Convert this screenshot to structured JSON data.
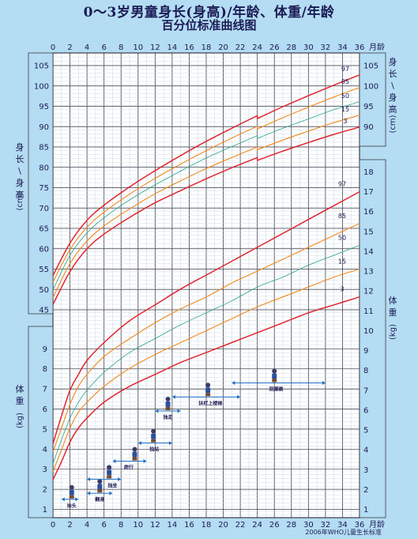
{
  "title": {
    "line1": "0～3岁男童身长(身高)/年龄、体重/年龄",
    "line2": "百分位标准曲线图"
  },
  "footer": "2006年WHO儿童生长标准",
  "colors": {
    "background": "#b4dcf2",
    "grid_minor": "#c6d6e2",
    "grid_major": "#3c3c4a",
    "p97_p3": "#e0262f",
    "p85_p15": "#f0891c",
    "p50": "#2aa28c",
    "milestone_arrow": "#1f6fc1",
    "text": "#1b1b55"
  },
  "chart_data": {
    "type": "line",
    "x_axis": {
      "label": "月龄",
      "range": [
        0,
        36
      ],
      "ticks": [
        0,
        2,
        4,
        6,
        8,
        10,
        12,
        14,
        16,
        18,
        20,
        22,
        24,
        26,
        28,
        30,
        32,
        34,
        36
      ],
      "tick_labels": [
        "0",
        "2",
        "4",
        "6",
        "8",
        "10",
        "12",
        "14",
        "16",
        "18",
        "20",
        "22",
        "24",
        "26",
        "28",
        "30",
        "32",
        "34",
        "36"
      ]
    },
    "length_axis": {
      "label_left": "身长/身高",
      "unit": "(cm)",
      "label_right": "身长/身高",
      "range": [
        43,
        107
      ],
      "ticks": [
        45,
        50,
        55,
        60,
        65,
        70,
        75,
        80,
        85,
        90,
        95,
        100,
        105
      ]
    },
    "weight_axis": {
      "label_left": "体重",
      "unit": "(kg)",
      "label_right": "体重",
      "range_left": [
        0.5,
        10.5
      ],
      "ticks_left": [
        1,
        2,
        3,
        4,
        5,
        6,
        7,
        8,
        9
      ],
      "range_right": [
        0.5,
        18.5
      ],
      "ticks_right": [
        1,
        2,
        3,
        4,
        5,
        6,
        7,
        8,
        9,
        10,
        11,
        12,
        13,
        14,
        15,
        16,
        17,
        18
      ]
    },
    "series": [
      {
        "name": "97",
        "kind": "length",
        "color": "#e0262f",
        "x": [
          0,
          2,
          4,
          6,
          9,
          12,
          15,
          18,
          21,
          24,
          24,
          27,
          30,
          33,
          36
        ],
        "y": [
          53.4,
          61.4,
          67.0,
          70.7,
          75.2,
          79.2,
          82.9,
          86.4,
          89.6,
          92.7,
          92.0,
          94.9,
          97.6,
          100.2,
          102.7
        ]
      },
      {
        "name": "85",
        "kind": "length",
        "color": "#f0891c",
        "x": [
          0,
          2,
          4,
          6,
          9,
          12,
          15,
          18,
          21,
          24,
          24,
          27,
          30,
          33,
          36
        ],
        "y": [
          51.8,
          59.8,
          65.3,
          69.0,
          73.4,
          77.3,
          80.8,
          84.1,
          87.2,
          90.1,
          89.4,
          92.2,
          94.8,
          97.3,
          99.6
        ]
      },
      {
        "name": "50",
        "kind": "length",
        "color": "#2aa28c",
        "x": [
          0,
          2,
          4,
          6,
          9,
          12,
          15,
          18,
          21,
          24,
          24,
          27,
          30,
          33,
          36
        ],
        "y": [
          49.9,
          58.4,
          63.9,
          67.6,
          72.0,
          75.7,
          79.1,
          82.3,
          85.1,
          87.8,
          87.1,
          89.6,
          91.9,
          94.2,
          96.1
        ]
      },
      {
        "name": "15",
        "kind": "length",
        "color": "#f0891c",
        "x": [
          0,
          2,
          4,
          6,
          9,
          12,
          15,
          18,
          21,
          24,
          24,
          27,
          30,
          33,
          36
        ],
        "y": [
          48.0,
          56.4,
          61.9,
          65.6,
          69.8,
          73.5,
          76.7,
          79.7,
          82.4,
          85.0,
          84.3,
          86.7,
          88.9,
          91.0,
          92.8
        ]
      },
      {
        "name": "3",
        "kind": "length",
        "color": "#e0262f",
        "x": [
          0,
          2,
          4,
          6,
          9,
          12,
          15,
          18,
          21,
          24,
          24,
          27,
          30,
          33,
          36
        ],
        "y": [
          46.3,
          54.4,
          60.0,
          63.6,
          67.7,
          71.3,
          74.3,
          77.2,
          79.9,
          82.4,
          81.7,
          84.0,
          86.1,
          88.1,
          89.9
        ]
      },
      {
        "name": "97",
        "kind": "weight",
        "color": "#e0262f",
        "x": [
          0,
          1,
          2,
          3,
          4,
          6,
          9,
          12,
          15,
          18,
          21,
          24,
          27,
          30,
          33,
          36
        ],
        "y": [
          4.3,
          5.7,
          7.0,
          7.8,
          8.5,
          9.4,
          10.5,
          11.3,
          12.1,
          12.8,
          13.5,
          14.2,
          14.9,
          15.6,
          16.3,
          17.0
        ]
      },
      {
        "name": "85",
        "kind": "weight",
        "color": "#f0891c",
        "x": [
          0,
          1,
          2,
          3,
          4,
          6,
          9,
          12,
          15,
          18,
          21,
          24,
          27,
          30,
          33,
          36
        ],
        "y": [
          3.9,
          5.1,
          6.3,
          7.2,
          7.8,
          8.7,
          9.6,
          10.4,
          11.1,
          11.7,
          12.4,
          13.0,
          13.6,
          14.2,
          14.8,
          15.4
        ]
      },
      {
        "name": "50",
        "kind": "weight",
        "color": "#2aa28c",
        "x": [
          0,
          1,
          2,
          3,
          4,
          6,
          9,
          12,
          15,
          18,
          21,
          24,
          27,
          30,
          33,
          36
        ],
        "y": [
          3.3,
          4.5,
          5.6,
          6.4,
          7.0,
          7.9,
          8.9,
          9.6,
          10.3,
          10.9,
          11.5,
          12.2,
          12.7,
          13.3,
          13.8,
          14.3
        ]
      },
      {
        "name": "15",
        "kind": "weight",
        "color": "#f0891c",
        "x": [
          0,
          1,
          2,
          3,
          4,
          6,
          9,
          12,
          15,
          18,
          21,
          24,
          27,
          30,
          33,
          36
        ],
        "y": [
          2.9,
          4.0,
          5.1,
          5.9,
          6.4,
          7.2,
          8.1,
          8.8,
          9.4,
          10.0,
          10.6,
          11.2,
          11.7,
          12.2,
          12.7,
          13.1
        ]
      },
      {
        "name": "3",
        "kind": "weight",
        "color": "#e0262f",
        "x": [
          0,
          1,
          2,
          3,
          4,
          6,
          9,
          12,
          15,
          18,
          21,
          24,
          27,
          30,
          33,
          36
        ],
        "y": [
          2.5,
          3.4,
          4.4,
          5.1,
          5.6,
          6.4,
          7.2,
          7.8,
          8.4,
          8.9,
          9.4,
          9.9,
          10.4,
          10.9,
          11.3,
          11.7
        ]
      }
    ],
    "milestones": [
      {
        "label": "抬头",
        "start_month": 1,
        "end_month": 3,
        "weight": 1.5,
        "figure_month": 2.2,
        "label_month": 2.2
      },
      {
        "label": "翻身",
        "start_month": 4,
        "end_month": 7,
        "weight": 1.8,
        "figure_month": 5.5,
        "label_month": 5.5
      },
      {
        "label": "独坐",
        "start_month": 4,
        "end_month": 8,
        "weight": 2.5,
        "figure_month": 6.6,
        "label_month": 7.0
      },
      {
        "label": "爬行",
        "start_month": 7,
        "end_month": 11,
        "weight": 3.4,
        "figure_month": 9.6,
        "label_month": 8.9
      },
      {
        "label": "独站",
        "start_month": 10,
        "end_month": 14,
        "weight": 4.3,
        "figure_month": 11.8,
        "label_month": 11.9
      },
      {
        "label": "独走",
        "start_month": 12,
        "end_month": 15,
        "weight": 5.9,
        "figure_month": 13.5,
        "label_month": 13.5
      },
      {
        "label": "扶栏上楼梯",
        "start_month": 14,
        "end_month": 22,
        "weight": 6.6,
        "figure_month": 18.2,
        "label_month": 18.5
      },
      {
        "label": "双脚跳",
        "start_month": 21,
        "end_month": 32,
        "weight": 7.3,
        "figure_month": 26.0,
        "label_month": 26.2
      }
    ]
  }
}
